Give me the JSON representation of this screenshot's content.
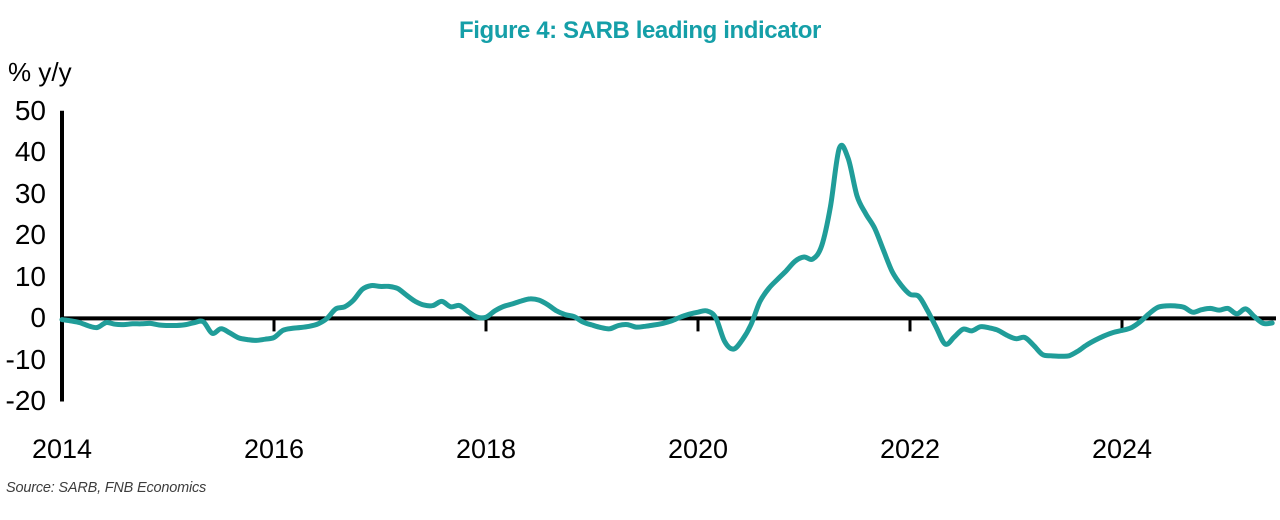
{
  "title": {
    "text": "Figure 4: SARB leading indicator",
    "color": "#159fa8"
  },
  "axis": {
    "unit_label": "% y/y",
    "axis_color": "#000000"
  },
  "source_note": "Source: SARB, FNB Economics",
  "chart_data": {
    "type": "line",
    "title": "Figure 4: SARB leading indicator",
    "ylabel": "% y/y",
    "series_name": "SARB leading indicator, % y/y",
    "line_color": "#209d99",
    "frequency": "monthly",
    "start_year": 2014,
    "start_month": 1,
    "ylim": [
      -20,
      50
    ],
    "xlim_years": [
      2014,
      2025.5
    ],
    "y_ticks": [
      50,
      40,
      30,
      20,
      10,
      0,
      -10,
      -20
    ],
    "x_ticks_years": [
      2014,
      2016,
      2018,
      2020,
      2022,
      2024
    ],
    "x_tick_labels": [
      "2014",
      "2016",
      "2018",
      "2020",
      "2022",
      "2024"
    ],
    "grid": false,
    "legend": "none",
    "values": [
      -0.3,
      -0.6,
      -1.0,
      -1.8,
      -2.2,
      -1.0,
      -1.4,
      -1.5,
      -1.3,
      -1.3,
      -1.2,
      -1.6,
      -1.7,
      -1.7,
      -1.5,
      -1.0,
      -0.8,
      -3.6,
      -2.5,
      -3.5,
      -4.7,
      -5.1,
      -5.3,
      -5.0,
      -4.6,
      -2.9,
      -2.4,
      -2.2,
      -1.9,
      -1.3,
      0.0,
      2.3,
      2.8,
      4.4,
      7.0,
      7.9,
      7.7,
      7.7,
      7.2,
      5.6,
      4.1,
      3.2,
      3.1,
      4.1,
      2.8,
      3.1,
      1.6,
      0.3,
      0.3,
      1.8,
      2.9,
      3.5,
      4.2,
      4.7,
      4.4,
      3.3,
      1.8,
      0.9,
      0.4,
      -0.9,
      -1.6,
      -2.2,
      -2.5,
      -1.7,
      -1.5,
      -2.1,
      -1.9,
      -1.6,
      -1.2,
      -0.6,
      0.3,
      1.0,
      1.5,
      1.8,
      0.2,
      -5.5,
      -7.4,
      -5.2,
      -1.5,
      4.0,
      7.2,
      9.4,
      11.5,
      13.8,
      14.8,
      14.3,
      17.5,
      27.0,
      41.0,
      38.5,
      29.5,
      25.2,
      21.7,
      16.4,
      11.2,
      8.0,
      5.8,
      5.3,
      1.8,
      -2.3,
      -6.2,
      -4.5,
      -2.6,
      -3.0,
      -2.0,
      -2.3,
      -2.9,
      -4.1,
      -4.9,
      -4.6,
      -6.5,
      -8.7,
      -9.0,
      -9.1,
      -9.0,
      -7.9,
      -6.4,
      -5.2,
      -4.2,
      -3.4,
      -2.9,
      -2.3,
      -0.9,
      1.0,
      2.6,
      3.0,
      3.0,
      2.7,
      1.5,
      2.1,
      2.4,
      2.0,
      2.4,
      1.1,
      2.3,
      0.4,
      -1.2,
      -1.1
    ]
  }
}
